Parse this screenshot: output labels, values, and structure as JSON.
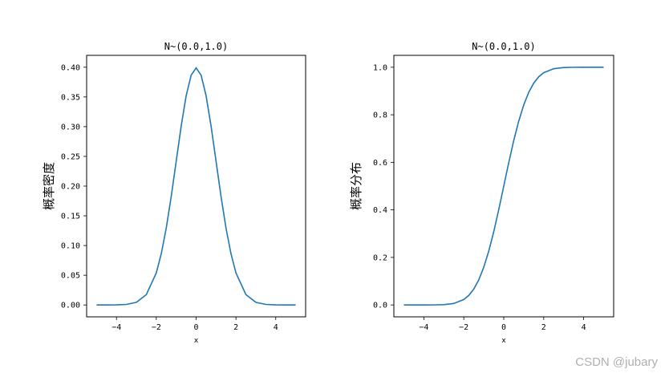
{
  "chart_data": [
    {
      "type": "line",
      "title": "N~(0.0,1.0)",
      "xlabel": "x",
      "ylabel": "概率密度",
      "xlim": [
        -5.5,
        5.5
      ],
      "ylim": [
        -0.02,
        0.42
      ],
      "xticks": [
        -4,
        -2,
        0,
        2,
        4
      ],
      "xtick_labels": [
        "−4",
        "−2",
        "0",
        "2",
        "4"
      ],
      "yticks": [
        0.0,
        0.05,
        0.1,
        0.15,
        0.2,
        0.25,
        0.3,
        0.35,
        0.4
      ],
      "ytick_labels": [
        "0.00",
        "0.05",
        "0.10",
        "0.15",
        "0.20",
        "0.25",
        "0.30",
        "0.35",
        "0.40"
      ],
      "color": "#1f77b4",
      "grid": false,
      "series": [
        {
          "x": [
            -5,
            -4.5,
            -4,
            -3.5,
            -3,
            -2.5,
            -2,
            -1.75,
            -1.5,
            -1.25,
            -1,
            -0.75,
            -0.5,
            -0.25,
            0,
            0.25,
            0.5,
            0.75,
            1,
            1.25,
            1.5,
            1.75,
            2,
            2.5,
            3,
            3.5,
            4,
            4.5,
            5
          ],
          "values": [
            0.0,
            0.0,
            0.0001,
            0.0009,
            0.0044,
            0.0175,
            0.054,
            0.0863,
            0.1295,
            0.1826,
            0.242,
            0.3011,
            0.3521,
            0.3867,
            0.3989,
            0.3867,
            0.3521,
            0.3011,
            0.242,
            0.1826,
            0.1295,
            0.0863,
            0.054,
            0.0175,
            0.0044,
            0.0009,
            0.0001,
            0.0,
            0.0
          ]
        }
      ]
    },
    {
      "type": "line",
      "title": "N~(0.0,1.0)",
      "xlabel": "x",
      "ylabel": "概率分布",
      "xlim": [
        -5.5,
        5.5
      ],
      "ylim": [
        -0.05,
        1.05
      ],
      "xticks": [
        -4,
        -2,
        0,
        2,
        4
      ],
      "xtick_labels": [
        "−4",
        "−2",
        "0",
        "2",
        "4"
      ],
      "yticks": [
        0.0,
        0.2,
        0.4,
        0.6,
        0.8,
        1.0
      ],
      "ytick_labels": [
        "0.0",
        "0.2",
        "0.4",
        "0.6",
        "0.8",
        "1.0"
      ],
      "color": "#1f77b4",
      "grid": false,
      "series": [
        {
          "x": [
            -5,
            -4.5,
            -4,
            -3.5,
            -3,
            -2.5,
            -2,
            -1.75,
            -1.5,
            -1.25,
            -1,
            -0.75,
            -0.5,
            -0.25,
            0,
            0.25,
            0.5,
            0.75,
            1,
            1.25,
            1.5,
            1.75,
            2,
            2.5,
            3,
            3.5,
            4,
            4.5,
            5
          ],
          "values": [
            0.0,
            0.0,
            0.0,
            0.0002,
            0.0013,
            0.0062,
            0.0228,
            0.0401,
            0.0668,
            0.1056,
            0.1587,
            0.2266,
            0.3085,
            0.4013,
            0.5,
            0.5987,
            0.6915,
            0.7734,
            0.8413,
            0.8944,
            0.9332,
            0.9599,
            0.9772,
            0.9938,
            0.9987,
            0.9998,
            1.0,
            1.0,
            1.0
          ]
        }
      ]
    }
  ],
  "watermark": "CSDN @jubary"
}
